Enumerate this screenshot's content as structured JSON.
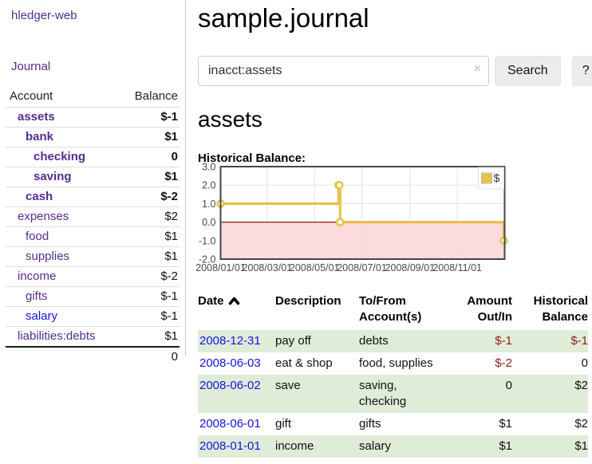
{
  "colors": {
    "purple": "#552d90",
    "link_blue": "#1414dd",
    "neg": "#8e1d1d",
    "neg_muted": "#c07c7c",
    "row_green": "#dfecd8",
    "button_bg": "#ececec",
    "input_border": "#cccccc",
    "divider": "#c9c9c9",
    "clear_x": "#d6cae6"
  },
  "sidebar": {
    "brand": "hledger-web",
    "journal_link": "Journal",
    "accounts_table": {
      "headers": [
        "Account",
        "Balance"
      ],
      "rows": [
        {
          "name": "assets",
          "depth": 1,
          "matched": true,
          "balance": "$-1",
          "tone": "neg"
        },
        {
          "name": "bank",
          "depth": 2,
          "matched": true,
          "balance": "$1",
          "tone": "normal"
        },
        {
          "name": "checking",
          "depth": 3,
          "matched": true,
          "balance": "0",
          "tone": "normal"
        },
        {
          "name": "saving",
          "depth": 3,
          "matched": true,
          "balance": "$1",
          "tone": "normal"
        },
        {
          "name": "cash",
          "depth": 2,
          "matched": true,
          "balance": "$-2",
          "tone": "neg"
        },
        {
          "name": "expenses",
          "depth": 1,
          "matched": false,
          "balance": "$2",
          "tone": "normal"
        },
        {
          "name": "food",
          "depth": 2,
          "matched": false,
          "balance": "$1",
          "tone": "normal"
        },
        {
          "name": "supplies",
          "depth": 2,
          "matched": false,
          "balance": "$1",
          "tone": "normal"
        },
        {
          "name": "income",
          "depth": 1,
          "matched": false,
          "balance": "$-2",
          "tone": "neg-muted"
        },
        {
          "name": "gifts",
          "depth": 2,
          "matched": false,
          "balance": "$-1",
          "tone": "neg-muted"
        },
        {
          "name": "salary",
          "depth": 2,
          "matched": false,
          "balance": "$-1",
          "tone": "neg-muted",
          "link_blue": true
        },
        {
          "name": "liabilities:debts",
          "depth": 1,
          "matched": false,
          "balance": "$1",
          "tone": "normal"
        }
      ],
      "total": "0"
    }
  },
  "main": {
    "title": "sample.journal",
    "search": {
      "value": "inacct:assets",
      "clear_icon": "×",
      "search_button": "Search",
      "help_button": "?"
    },
    "account_heading": "assets",
    "chart_label": "Historical Balance:",
    "register_table": {
      "headers": [
        {
          "lines": [
            "Date"
          ],
          "sortable": true,
          "align": "left"
        },
        {
          "lines": [
            "Description"
          ],
          "align": "left"
        },
        {
          "lines": [
            "To/From",
            "Account(s)"
          ],
          "align": "left"
        },
        {
          "lines": [
            "Amount",
            "Out/In"
          ],
          "align": "right"
        },
        {
          "lines": [
            "Historical",
            "Balance"
          ],
          "align": "right"
        }
      ],
      "rows": [
        {
          "date": "2008-12-31",
          "description": "pay off",
          "accounts": "debts",
          "amount": "$-1",
          "amount_neg": true,
          "balance": "$-1",
          "balance_neg": true,
          "shaded": true
        },
        {
          "date": "2008-06-03",
          "description": "eat & shop",
          "accounts": "food, supplies",
          "amount": "$-2",
          "amount_neg": true,
          "balance": "0",
          "balance_neg": false,
          "shaded": false
        },
        {
          "date": "2008-06-02",
          "description": "save",
          "accounts": "saving, checking",
          "amount": "0",
          "amount_neg": false,
          "balance": "$2",
          "balance_neg": false,
          "shaded": true
        },
        {
          "date": "2008-06-01",
          "description": "gift",
          "accounts": "gifts",
          "amount": "$1",
          "amount_neg": false,
          "balance": "$2",
          "balance_neg": false,
          "shaded": false
        },
        {
          "date": "2008-01-01",
          "description": "income",
          "accounts": "salary",
          "amount": "$1",
          "amount_neg": false,
          "balance": "$1",
          "balance_neg": false,
          "shaded": true
        }
      ]
    }
  },
  "chart_data": {
    "type": "line",
    "steps": true,
    "title": "Historical Balance",
    "series": [
      {
        "name": "$",
        "color": "#e8c24a",
        "points": [
          [
            "2008-01-01",
            1
          ],
          [
            "2008-06-01",
            2
          ],
          [
            "2008-06-02",
            2
          ],
          [
            "2008-06-03",
            0
          ],
          [
            "2008-12-31",
            -1
          ]
        ]
      }
    ],
    "x_range": [
      "2008-01-01",
      "2009-01-01"
    ],
    "x_ticks": [
      "2008/01/01",
      "2008/03/01",
      "2008/05/01",
      "2008/07/01",
      "2008/09/01",
      "2008/11/01"
    ],
    "y_ticks": [
      3.0,
      2.0,
      1.0,
      0.0,
      -1.0,
      -2.0
    ],
    "ylim": [
      -2,
      3
    ],
    "grid": true,
    "legend_position": "top-right",
    "zero_line_color": "#8b1a1a",
    "negative_fill": "#fbdbdb",
    "grid_color": "#e3e3e3",
    "border_color": "#464646",
    "label_color": "#4a4a4a"
  }
}
